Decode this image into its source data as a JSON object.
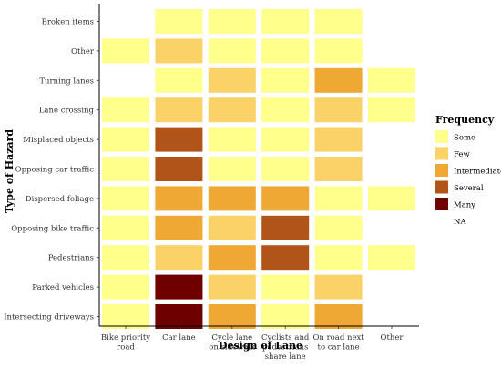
{
  "chart_data": {
    "type": "heatmap",
    "xlabel": "Design of Lane",
    "ylabel": "Type of Hazard",
    "x_categories": [
      "Bike priority road",
      "Car lane",
      "Cycle lane on sidewalk",
      "Cyclists and pedestrians share lane",
      "On road next to car lane",
      "Other"
    ],
    "x_tick_lines": [
      [
        "Bike priority",
        "road"
      ],
      [
        "Car lane"
      ],
      [
        "Cycle lane",
        "on sidewalk"
      ],
      [
        "Cyclists and",
        "pedestrians",
        "share lane"
      ],
      [
        "On road next",
        "to car lane"
      ],
      [
        "Other"
      ]
    ],
    "y_categories": [
      "Broken items",
      "Other",
      "Turning lanes",
      "Lane crossing",
      "Misplaced objects",
      "Opposing car traffic",
      "Dispersed foliage",
      "Opposing bike traffic",
      "Pedestrians",
      "Parked vehicles",
      "Intersecting driveways"
    ],
    "values": [
      [
        "NA",
        "Some",
        "Some",
        "Some",
        "Some",
        "NA"
      ],
      [
        "Some",
        "Few",
        "Some",
        "Some",
        "Some",
        "NA"
      ],
      [
        "NA",
        "Some",
        "Few",
        "Some",
        "Intermediate",
        "Some"
      ],
      [
        "Some",
        "Few",
        "Few",
        "Some",
        "Few",
        "Some"
      ],
      [
        "Some",
        "Several",
        "Some",
        "Some",
        "Few",
        "NA"
      ],
      [
        "Some",
        "Several",
        "Some",
        "Some",
        "Few",
        "NA"
      ],
      [
        "Some",
        "Intermediate",
        "Intermediate",
        "Intermediate",
        "Some",
        "Some"
      ],
      [
        "Some",
        "Intermediate",
        "Few",
        "Several",
        "Some",
        "NA"
      ],
      [
        "Some",
        "Few",
        "Intermediate",
        "Several",
        "Some",
        "Some"
      ],
      [
        "Some",
        "Many",
        "Few",
        "Some",
        "Few",
        "NA"
      ],
      [
        "Some",
        "Many",
        "Intermediate",
        "Some",
        "Intermediate",
        "NA"
      ]
    ],
    "legend": {
      "title": "Frequency",
      "position": "right",
      "levels": [
        "Some",
        "Few",
        "Intermediate",
        "Several",
        "Many",
        "NA"
      ]
    },
    "colors": {
      "Some": "#ffff8c",
      "Few": "#fad267",
      "Intermediate": "#f0a834",
      "Several": "#b1541a",
      "Many": "#6e0000",
      "NA": "#ffffff"
    },
    "grid": false
  }
}
